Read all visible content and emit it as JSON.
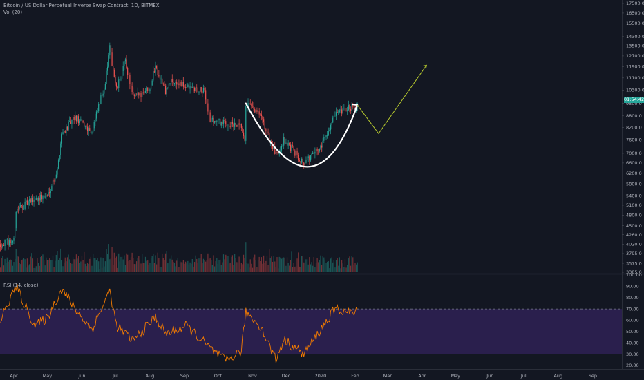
{
  "header": {
    "title": "Bitcoin / US Dollar Perpetual Inverse Swap Contract, 1D, BITMEX",
    "vol_label": "Vol (20)",
    "rsi_label": "RSI (14, close)"
  },
  "price_tag": "01:54:42",
  "colors": {
    "background": "#131722",
    "up": "#26a69a",
    "down": "#ef5350",
    "rsi_line": "#f57c00",
    "rsi_band": "#2a1f4d",
    "projection": "#b9cc2e",
    "cup": "#ffffff",
    "axis_text": "#b2b5be"
  },
  "chart_data": [
    {
      "type": "candlestick",
      "title": "Bitcoin / US Dollar Perpetual Inverse Swap Contract, 1D, BITMEX",
      "y_scale": "log",
      "y_ticks": [
        17500,
        16500,
        15500,
        14300,
        13500,
        12700,
        11900,
        11100,
        10300,
        9500,
        8800,
        8200,
        7600,
        7000,
        6600,
        6200,
        5800,
        5400,
        5100,
        4800,
        4500,
        4260,
        4020,
        3795,
        3575,
        3385
      ],
      "y_tick_labels": [
        "17500.0",
        "16500.0",
        "15500.0",
        "14300.0",
        "13500.0",
        "12700.0",
        "11900.0",
        "11100.0",
        "10300.0",
        "9500.0",
        "8800.0",
        "8200.0",
        "7600.0",
        "7000.0",
        "6600.0",
        "6200.0",
        "5800.0",
        "5400.0",
        "5100.0",
        "4800.0",
        "4500.0",
        "4260.0",
        "4020.0",
        "3795.0",
        "3575.0",
        "3385.0"
      ],
      "x_ticks": [
        "2019-04-01",
        "2019-05-01",
        "2019-06-01",
        "2019-07-01",
        "2019-08-01",
        "2019-09-01",
        "2019-10-01",
        "2019-11-01",
        "2019-12-01",
        "2020-01-01",
        "2020-02-01",
        "2020-03-01",
        "2020-04-01",
        "2020-05-01",
        "2020-06-01",
        "2020-07-01",
        "2020-08-01",
        "2020-09-01"
      ],
      "x_tick_labels": [
        "Apr",
        "May",
        "Jun",
        "Jul",
        "Aug",
        "Sep",
        "Oct",
        "Nov",
        "Dec",
        "2020",
        "Feb",
        "Mar",
        "Apr",
        "May",
        "Jun",
        "Jul",
        "Aug",
        "Sep"
      ],
      "x_range": [
        "2019-03-20",
        "2020-09-20"
      ],
      "price_path": [
        [
          "2019-03-20",
          4020
        ],
        [
          "2019-04-01",
          4100
        ],
        [
          "2019-04-03",
          4950
        ],
        [
          "2019-04-20",
          5300
        ],
        [
          "2019-05-01",
          5400
        ],
        [
          "2019-05-10",
          6300
        ],
        [
          "2019-05-14",
          7900
        ],
        [
          "2019-05-26",
          8700
        ],
        [
          "2019-06-10",
          8000
        ],
        [
          "2019-06-22",
          10800
        ],
        [
          "2019-06-26",
          13300
        ],
        [
          "2019-07-02",
          10300
        ],
        [
          "2019-07-10",
          12300
        ],
        [
          "2019-07-17",
          9800
        ],
        [
          "2019-08-01",
          10500
        ],
        [
          "2019-08-06",
          12000
        ],
        [
          "2019-08-15",
          10200
        ],
        [
          "2019-08-20",
          10900
        ],
        [
          "2019-09-03",
          10500
        ],
        [
          "2019-09-19",
          10200
        ],
        [
          "2019-09-24",
          8600
        ],
        [
          "2019-10-22",
          8200
        ],
        [
          "2019-10-25",
          7400
        ],
        [
          "2019-10-26",
          9500
        ],
        [
          "2019-11-08",
          8800
        ],
        [
          "2019-11-22",
          6900
        ],
        [
          "2019-11-29",
          7600
        ],
        [
          "2019-12-17",
          6600
        ],
        [
          "2019-12-31",
          7200
        ],
        [
          "2020-01-14",
          8800
        ],
        [
          "2020-01-31",
          9400
        ],
        [
          "2020-02-03",
          9300
        ]
      ],
      "rsi": {
        "ylim": [
          20,
          100
        ],
        "y_ticks": [
          100,
          90,
          80,
          70,
          60,
          50,
          40,
          30,
          20
        ],
        "y_tick_labels": [
          "100.00",
          "90.00",
          "80.00",
          "70.00",
          "60.00",
          "50.00",
          "40.00",
          "30.00",
          "20.00"
        ],
        "band": [
          30,
          70
        ],
        "path": [
          [
            "2019-03-20",
            60
          ],
          [
            "2019-04-03",
            90
          ],
          [
            "2019-04-10",
            75
          ],
          [
            "2019-04-20",
            55
          ],
          [
            "2019-05-01",
            62
          ],
          [
            "2019-05-14",
            88
          ],
          [
            "2019-05-26",
            70
          ],
          [
            "2019-06-10",
            52
          ],
          [
            "2019-06-26",
            86
          ],
          [
            "2019-07-02",
            55
          ],
          [
            "2019-07-17",
            42
          ],
          [
            "2019-08-06",
            63
          ],
          [
            "2019-08-15",
            48
          ],
          [
            "2019-09-03",
            55
          ],
          [
            "2019-09-24",
            35
          ],
          [
            "2019-10-08",
            24
          ],
          [
            "2019-10-22",
            33
          ],
          [
            "2019-10-26",
            67
          ],
          [
            "2019-11-08",
            55
          ],
          [
            "2019-11-22",
            25
          ],
          [
            "2019-11-29",
            43
          ],
          [
            "2019-12-17",
            30
          ],
          [
            "2019-12-31",
            50
          ],
          [
            "2020-01-14",
            70
          ],
          [
            "2020-01-31",
            66
          ],
          [
            "2020-02-03",
            68
          ]
        ]
      },
      "annotations": {
        "cup": [
          [
            "2019-10-26",
            9500
          ],
          [
            "2019-12-20",
            6450
          ],
          [
            "2020-02-03",
            9400
          ]
        ],
        "projection": [
          [
            "2020-02-03",
            9400
          ],
          [
            "2020-02-22",
            7900
          ],
          [
            "2020-04-05",
            12000
          ]
        ]
      }
    }
  ]
}
